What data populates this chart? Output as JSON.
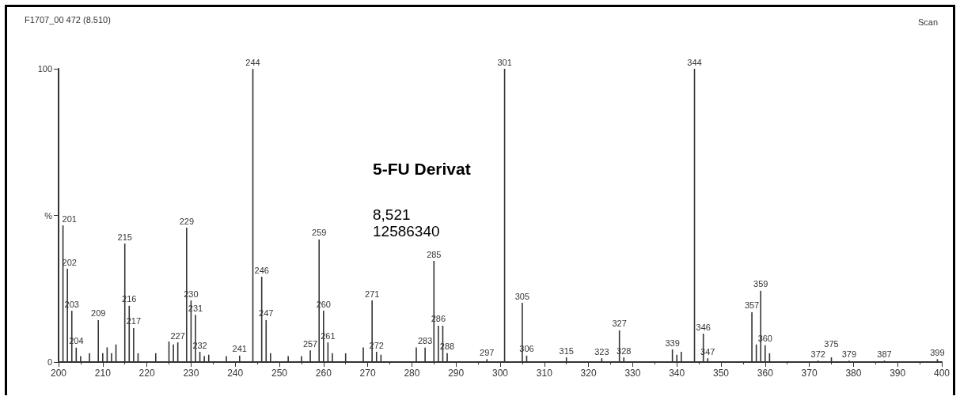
{
  "chart_data": {
    "type": "bar",
    "title": "F1707_00 472 (8.510)",
    "x": [
      201,
      202,
      203,
      204,
      205,
      207,
      209,
      210,
      211,
      212,
      213,
      215,
      216,
      217,
      218,
      222,
      225,
      226,
      227,
      229,
      230,
      231,
      232,
      233,
      234,
      238,
      241,
      244,
      246,
      247,
      248,
      252,
      255,
      257,
      259,
      260,
      261,
      262,
      265,
      269,
      271,
      272,
      273,
      281,
      283,
      285,
      286,
      287,
      288,
      297,
      301,
      305,
      306,
      315,
      323,
      327,
      328,
      339,
      340,
      341,
      344,
      346,
      347,
      357,
      358,
      359,
      360,
      361,
      372,
      375,
      379,
      387,
      399
    ],
    "values": [
      46.6,
      31.8,
      17.5,
      4.9,
      2,
      3,
      14.3,
      3,
      5,
      3,
      6,
      40.4,
      19.2,
      11.6,
      3,
      3,
      7,
      6,
      6.7,
      45.8,
      21,
      16.1,
      3.5,
      2,
      2.5,
      2,
      2.2,
      100,
      29.1,
      14.3,
      3,
      2,
      2,
      4,
      41.8,
      17.5,
      6.7,
      3,
      3,
      5,
      21,
      3.5,
      2.5,
      5,
      4.9,
      34.5,
      12.4,
      12.4,
      3,
      1,
      100,
      20.2,
      2.2,
      1.6,
      1.3,
      10.8,
      1.6,
      4.3,
      2.5,
      3.5,
      100,
      9.7,
      1.3,
      17,
      6,
      24.3,
      5.7,
      3,
      0.5,
      1.6,
      0.5,
      0.5,
      1
    ],
    "color": "#333333",
    "xlim": [
      200,
      400
    ],
    "xticks": [
      200,
      210,
      220,
      230,
      240,
      250,
      260,
      270,
      280,
      290,
      300,
      310,
      320,
      330,
      340,
      350,
      360,
      370,
      380,
      390,
      400
    ],
    "ylim": [
      0,
      100
    ],
    "yticks": [
      0,
      {
        "value": 50,
        "label": "%"
      },
      100
    ],
    "grid": false,
    "annotations": [
      {
        "text": "201",
        "x": 201,
        "y": 46.6
      },
      {
        "text": "202",
        "x": 202,
        "y": 31.8
      },
      {
        "text": "203",
        "x": 203,
        "y": 17.5
      },
      {
        "text": "204",
        "x": 204,
        "y": 4.9
      },
      {
        "text": "209",
        "x": 209,
        "y": 14.3
      },
      {
        "text": "215",
        "x": 215,
        "y": 40.4
      },
      {
        "text": "216",
        "x": 216,
        "y": 19.2
      },
      {
        "text": "217",
        "x": 217,
        "y": 11.6
      },
      {
        "text": "227",
        "x": 227,
        "y": 6.7
      },
      {
        "text": "229",
        "x": 229,
        "y": 45.8
      },
      {
        "text": "230",
        "x": 230,
        "y": 21
      },
      {
        "text": "231",
        "x": 231,
        "y": 16.1
      },
      {
        "text": "232",
        "x": 232,
        "y": 3.5
      },
      {
        "text": "241",
        "x": 241,
        "y": 2.2
      },
      {
        "text": "244",
        "x": 244,
        "y": 100
      },
      {
        "text": "246",
        "x": 246,
        "y": 29.1
      },
      {
        "text": "247",
        "x": 247,
        "y": 14.3
      },
      {
        "text": "257",
        "x": 257,
        "y": 4
      },
      {
        "text": "259",
        "x": 259,
        "y": 41.8
      },
      {
        "text": "260",
        "x": 260,
        "y": 17.5
      },
      {
        "text": "261",
        "x": 261,
        "y": 6.7
      },
      {
        "text": "271",
        "x": 271,
        "y": 21
      },
      {
        "text": "272",
        "x": 272,
        "y": 3.5
      },
      {
        "text": "283",
        "x": 283,
        "y": 4.9
      },
      {
        "text": "285",
        "x": 285,
        "y": 34.5
      },
      {
        "text": "286",
        "x": 286,
        "y": 12.4
      },
      {
        "text": "288",
        "x": 288,
        "y": 3
      },
      {
        "text": "297",
        "x": 297,
        "y": 1
      },
      {
        "text": "301",
        "x": 301,
        "y": 100
      },
      {
        "text": "305",
        "x": 305,
        "y": 20.2
      },
      {
        "text": "306",
        "x": 306,
        "y": 2.2
      },
      {
        "text": "315",
        "x": 315,
        "y": 1.6
      },
      {
        "text": "323",
        "x": 323,
        "y": 1.3
      },
      {
        "text": "327",
        "x": 327,
        "y": 10.8
      },
      {
        "text": "328",
        "x": 328,
        "y": 1.6
      },
      {
        "text": "339",
        "x": 339,
        "y": 4.3
      },
      {
        "text": "344",
        "x": 344,
        "y": 100
      },
      {
        "text": "346",
        "x": 346,
        "y": 9.7
      },
      {
        "text": "347",
        "x": 347,
        "y": 1.3
      },
      {
        "text": "357",
        "x": 357,
        "y": 17
      },
      {
        "text": "359",
        "x": 359,
        "y": 24.3
      },
      {
        "text": "360",
        "x": 360,
        "y": 5.7
      },
      {
        "text": "372",
        "x": 372,
        "y": 0.5
      },
      {
        "text": "375",
        "x": 375,
        "y": 1.6
      },
      {
        "text": "379",
        "x": 379,
        "y": 0.5
      },
      {
        "text": "387",
        "x": 387,
        "y": 0.5
      },
      {
        "text": "399",
        "x": 399,
        "y": 1
      },
      "5-FU Derivat",
      "8,521",
      "12586340",
      "Scan"
    ]
  }
}
